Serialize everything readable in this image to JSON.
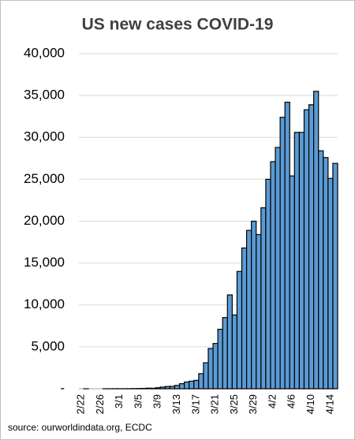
{
  "chart_data": {
    "type": "bar",
    "title": "US new cases  COVID-19",
    "source": "source: ourworldindata.org, ECDC",
    "categories": [
      "2/22",
      null,
      null,
      null,
      "2/26",
      null,
      null,
      null,
      "3/1",
      null,
      null,
      null,
      "3/5",
      null,
      null,
      null,
      "3/9",
      null,
      null,
      null,
      "3/13",
      null,
      null,
      null,
      "3/17",
      null,
      null,
      null,
      "3/21",
      null,
      null,
      null,
      "3/25",
      null,
      null,
      null,
      "3/29",
      null,
      null,
      null,
      "4/2",
      null,
      null,
      null,
      "4/6",
      null,
      null,
      null,
      "4/10",
      null,
      null,
      null,
      "4/14",
      null
    ],
    "values": [
      0,
      1,
      0,
      0,
      0,
      1,
      3,
      7,
      5,
      7,
      11,
      20,
      30,
      40,
      70,
      60,
      120,
      200,
      270,
      290,
      400,
      600,
      800,
      900,
      1000,
      1800,
      3100,
      4800,
      5400,
      7100,
      8500,
      11200,
      8800,
      14000,
      16800,
      18900,
      20000,
      18400,
      21600,
      25000,
      27100,
      28800,
      32400,
      34200,
      25400,
      30600,
      30600,
      33300,
      33900,
      35500,
      28400,
      27600,
      25100,
      26900
    ],
    "color": "#5b9bd5",
    "ylim": [
      0,
      40000
    ],
    "yticks": [
      {
        "value": 0,
        "label": "-"
      },
      {
        "value": 5000,
        "label": "5,000"
      },
      {
        "value": 10000,
        "label": "10,000"
      },
      {
        "value": 15000,
        "label": "15,000"
      },
      {
        "value": 20000,
        "label": "20,000"
      },
      {
        "value": 25000,
        "label": "25,000"
      },
      {
        "value": 30000,
        "label": "30,000"
      },
      {
        "value": 35000,
        "label": "35,000"
      },
      {
        "value": 40000,
        "label": "40,000"
      }
    ],
    "grid": true
  }
}
